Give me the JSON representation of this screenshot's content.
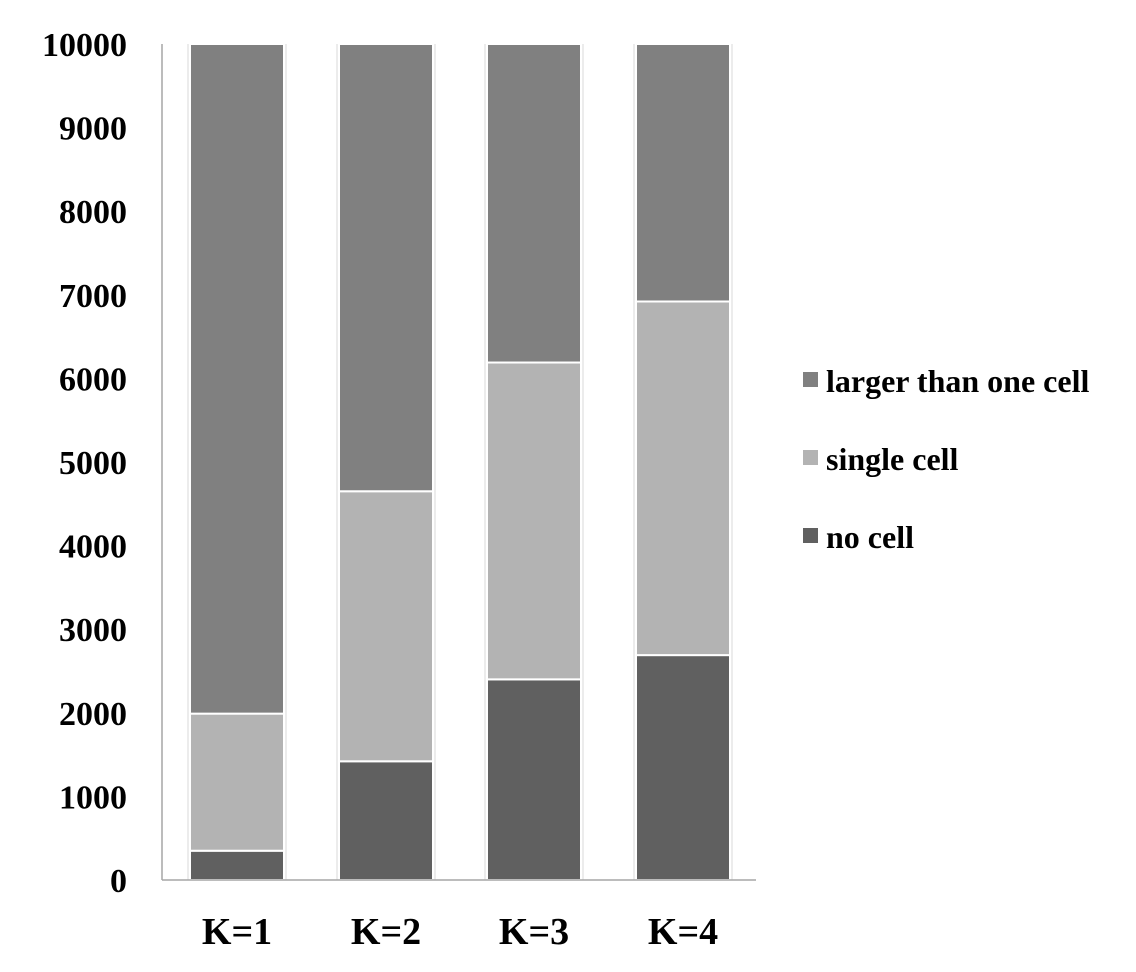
{
  "chart_data": {
    "type": "bar",
    "stacked": true,
    "categories": [
      "K=1",
      "K=2",
      "K=3",
      "K=4"
    ],
    "series": [
      {
        "name": "no cell",
        "color": "#606060",
        "values": [
          350,
          1420,
          2400,
          2690
        ]
      },
      {
        "name": "single cell",
        "color": "#b3b3b3",
        "values": [
          1640,
          3230,
          3790,
          4230
        ]
      },
      {
        "name": "larger than one cell",
        "color": "#808080",
        "values": [
          8010,
          5350,
          3810,
          3080
        ]
      }
    ],
    "ylim": [
      0,
      10000
    ],
    "yticks": [
      0,
      1000,
      2000,
      3000,
      4000,
      5000,
      6000,
      7000,
      8000,
      9000,
      10000
    ],
    "grid": false,
    "legend_position": "right",
    "legend_order": [
      "larger than one cell",
      "single cell",
      "no cell"
    ],
    "title": "",
    "xlabel": "",
    "ylabel": ""
  }
}
